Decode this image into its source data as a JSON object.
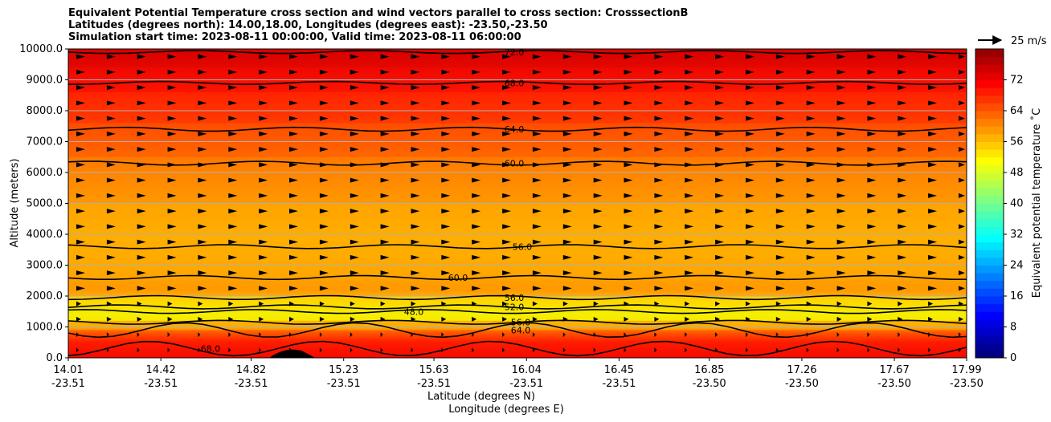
{
  "title": {
    "line1": "Equivalent Potential Temperature cross section and wind vectors parallel to cross section: CrosssectionB",
    "line2": "Latitudes (degrees north): 14.00,18.00, Longitudes (degrees east): -23.50,-23.50",
    "line3": "Simulation start time: 2023-08-11 00:00:00, Valid time: 2023-08-11 06:00:00"
  },
  "quiver_key": {
    "label": "25 m/s",
    "value": 25
  },
  "chart_data": {
    "type": "heatmap",
    "ylabel": "Altitude (meters)",
    "xlabel_lat": "Latitude (degrees N)",
    "xlabel_lon": "Longitude (degrees E)",
    "ylim": [
      0,
      10000
    ],
    "y_ticks": [
      "0.0",
      "1000.0",
      "2000.0",
      "3000.0",
      "4000.0",
      "5000.0",
      "6000.0",
      "7000.0",
      "8000.0",
      "9000.0",
      "10000.0"
    ],
    "x_ticks": [
      {
        "lat": "14.01",
        "lon": "-23.51"
      },
      {
        "lat": "14.42",
        "lon": "-23.51"
      },
      {
        "lat": "14.82",
        "lon": "-23.51"
      },
      {
        "lat": "15.23",
        "lon": "-23.51"
      },
      {
        "lat": "15.63",
        "lon": "-23.51"
      },
      {
        "lat": "16.04",
        "lon": "-23.51"
      },
      {
        "lat": "16.45",
        "lon": "-23.51"
      },
      {
        "lat": "16.85",
        "lon": "-23.50"
      },
      {
        "lat": "17.26",
        "lon": "-23.50"
      },
      {
        "lat": "17.67",
        "lon": "-23.50"
      },
      {
        "lat": "17.99",
        "lon": "-23.50"
      }
    ],
    "horizontal_grid": true,
    "colorbar": {
      "label": "Equivalent potential temperature ˚C",
      "ticks": [
        "0",
        "8",
        "16",
        "24",
        "32",
        "40",
        "48",
        "56",
        "64",
        "72"
      ],
      "range": [
        0,
        80
      ]
    },
    "contours": [
      {
        "level": "72.0",
        "altitude_m": 9900
      },
      {
        "level": "68.0",
        "altitude_m": 8900
      },
      {
        "level": "64.0",
        "altitude_m": 7400
      },
      {
        "level": "60.0",
        "altitude_m": 6300
      },
      {
        "level": "56.0",
        "altitude_m": 3600
      },
      {
        "level": "60.0",
        "altitude_m": 2600
      },
      {
        "level": "56.0",
        "altitude_m": 1950
      },
      {
        "level": "52.0",
        "altitude_m": 1650
      },
      {
        "level": "48.0",
        "altitude_m": 1500
      },
      {
        "level": "56.0",
        "altitude_m": 1150
      },
      {
        "level": "64.0",
        "altitude_m": 900
      },
      {
        "level": "68.0",
        "altitude_m": 300
      }
    ],
    "field_bands": [
      {
        "altitude_m": [
          9400,
          10000
        ],
        "theta_e": 74
      },
      {
        "altitude_m": [
          8600,
          9400
        ],
        "theta_e": 71
      },
      {
        "altitude_m": [
          7600,
          8600
        ],
        "theta_e": 67
      },
      {
        "altitude_m": [
          6500,
          7600
        ],
        "theta_e": 63
      },
      {
        "altitude_m": [
          5000,
          6500
        ],
        "theta_e": 59
      },
      {
        "altitude_m": [
          2500,
          5000
        ],
        "theta_e": 57
      },
      {
        "altitude_m": [
          2000,
          2500
        ],
        "theta_e": 58
      },
      {
        "altitude_m": [
          1200,
          2000
        ],
        "theta_e": 51
      },
      {
        "altitude_m": [
          900,
          1200
        ],
        "theta_e": 62
      },
      {
        "altitude_m": [
          0,
          900
        ],
        "theta_e": 70
      }
    ],
    "wind": "westerly wind vectors parallel to the cross section at all levels, weaker near the surface"
  }
}
